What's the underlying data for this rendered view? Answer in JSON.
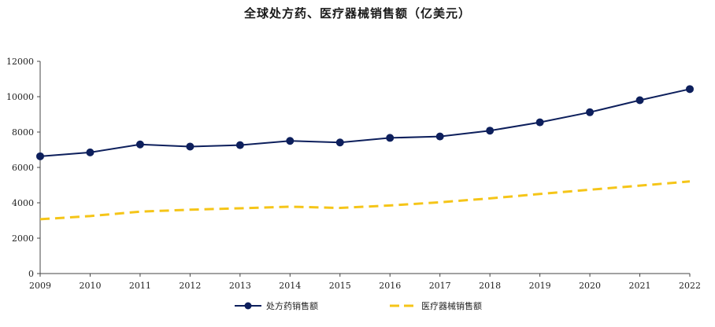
{
  "chart_data": {
    "type": "line",
    "title": "全球处方药、医疗器械销售额（亿美元）",
    "x": [
      "2009",
      "2010",
      "2011",
      "2012",
      "2013",
      "2014",
      "2015",
      "2016",
      "2017",
      "2018",
      "2019",
      "2020",
      "2021",
      "2022"
    ],
    "ylim": [
      0,
      12000
    ],
    "yticks": [
      "0",
      "2000",
      "4000",
      "6000",
      "8000",
      "10000",
      "12000"
    ],
    "grid": false,
    "legend_position": "bottom",
    "series": [
      {
        "name": "处方药销售额",
        "color": "#0d1f5c",
        "style": "solid-marker",
        "values": [
          6630,
          6850,
          7300,
          7180,
          7260,
          7500,
          7410,
          7670,
          7750,
          8080,
          8550,
          9120,
          9800,
          10430
        ]
      },
      {
        "name": "医疗器械销售额",
        "color": "#f5c518",
        "style": "dashed",
        "values": [
          3070,
          3250,
          3500,
          3610,
          3690,
          3780,
          3710,
          3850,
          4030,
          4250,
          4500,
          4740,
          4970,
          5210
        ]
      }
    ]
  }
}
